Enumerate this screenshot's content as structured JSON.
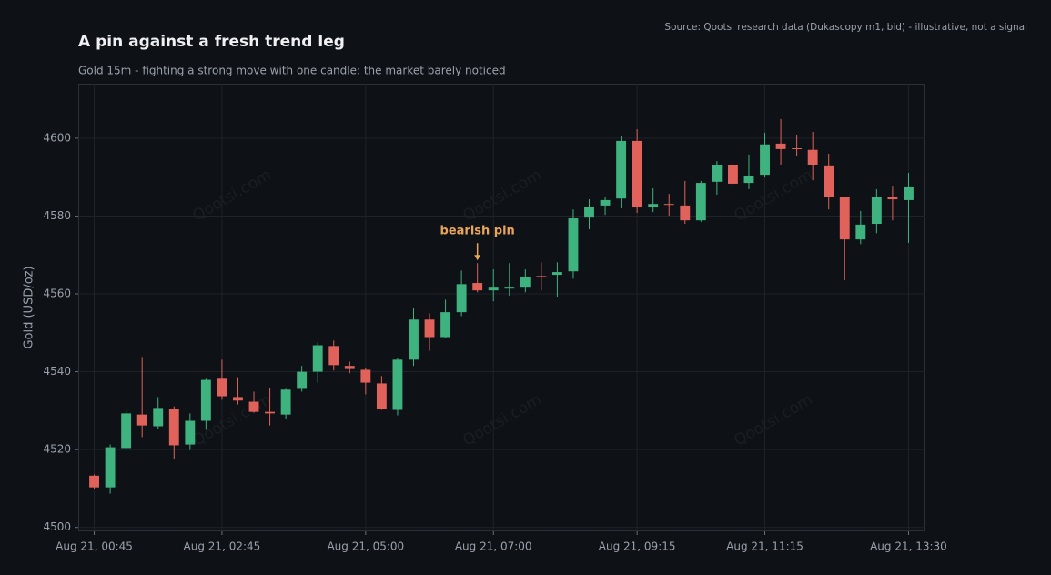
{
  "chart_data": {
    "type": "candlestick",
    "title": "A pin against a fresh trend leg",
    "subtitle": "Gold 15m - fighting a strong move with one candle: the market barely noticed",
    "source": "Source: Qootsi research data (Dukascopy m1, bid) - illustrative, not a signal",
    "y_label": "Gold (USD/oz)",
    "watermark": "Qootsi.com",
    "up_color": "#3fb37f",
    "down_color": "#e0625a",
    "annotation_color": "#e8a55a",
    "grid": true,
    "xlim": [
      -1,
      52
    ],
    "xticks": [
      {
        "value": 0,
        "label": "Aug 21, 00:45"
      },
      {
        "value": 8,
        "label": "Aug 21, 02:45"
      },
      {
        "value": 17,
        "label": "Aug 21, 05:00"
      },
      {
        "value": 25,
        "label": "Aug 21, 07:00"
      },
      {
        "value": 34,
        "label": "Aug 21, 09:15"
      },
      {
        "value": 42,
        "label": "Aug 21, 11:15"
      },
      {
        "value": 51,
        "label": "Aug 21, 13:30"
      }
    ],
    "ylim": [
      4499,
      4614
    ],
    "yticks": [
      4500,
      4520,
      4540,
      4560,
      4580,
      4600
    ],
    "open": [
      4513.3,
      4510.3,
      4520.4,
      4529.0,
      4526.0,
      4530.4,
      4521.3,
      4527.4,
      4538.2,
      4533.5,
      4532.3,
      4529.7,
      4529.0,
      4535.6,
      4540.0,
      4546.6,
      4541.5,
      4540.5,
      4537.0,
      4530.2,
      4543.1,
      4553.4,
      4548.9,
      4555.3,
      4562.8,
      4560.9,
      4561.4,
      4561.6,
      4564.6,
      4564.9,
      4565.8,
      4579.6,
      4582.7,
      4584.5,
      4599.3,
      4582.4,
      4583.1,
      4582.7,
      4578.9,
      4588.8,
      4593.2,
      4588.5,
      4590.6,
      4598.6,
      4597.4,
      4597.0,
      4593.0,
      4584.8,
      4574.0,
      4578.0,
      4585.0,
      4584.1
    ],
    "high": [
      4513.6,
      4521.3,
      4530.2,
      4543.8,
      4533.5,
      4531.1,
      4529.3,
      4538.2,
      4543.1,
      4538.6,
      4534.9,
      4535.8,
      4535.6,
      4541.5,
      4547.5,
      4548.0,
      4542.6,
      4541.0,
      4538.9,
      4543.6,
      4556.4,
      4555.0,
      4558.5,
      4566.0,
      4567.9,
      4566.3,
      4567.9,
      4566.3,
      4568.1,
      4568.1,
      4581.7,
      4584.3,
      4585.0,
      4600.7,
      4602.3,
      4587.1,
      4585.7,
      4589.0,
      4589.0,
      4594.1,
      4593.7,
      4595.8,
      4601.4,
      4604.9,
      4600.9,
      4601.6,
      4596.0,
      4584.8,
      4581.3,
      4586.9,
      4587.8,
      4591.1
    ],
    "low": [
      4509.8,
      4508.7,
      4520.1,
      4523.2,
      4525.3,
      4517.6,
      4519.9,
      4525.1,
      4532.8,
      4531.6,
      4529.5,
      4526.2,
      4527.9,
      4534.9,
      4537.2,
      4540.3,
      4539.6,
      4534.2,
      4530.2,
      4528.8,
      4541.5,
      4545.4,
      4548.7,
      4554.3,
      4560.4,
      4558.1,
      4559.5,
      4560.4,
      4560.9,
      4559.3,
      4563.9,
      4576.6,
      4580.3,
      4582.0,
      4580.8,
      4581.0,
      4580.1,
      4578.0,
      4578.5,
      4585.5,
      4587.6,
      4586.9,
      4589.9,
      4593.2,
      4595.5,
      4589.2,
      4581.7,
      4563.5,
      4572.8,
      4575.6,
      4578.9,
      4573.1
    ],
    "close": [
      4510.3,
      4520.6,
      4529.3,
      4526.2,
      4530.7,
      4521.1,
      4527.4,
      4537.9,
      4533.7,
      4532.6,
      4529.7,
      4529.3,
      4535.4,
      4540.0,
      4546.8,
      4541.7,
      4540.7,
      4537.2,
      4530.4,
      4543.1,
      4553.4,
      4548.9,
      4555.3,
      4562.5,
      4560.9,
      4561.6,
      4561.6,
      4564.4,
      4564.4,
      4565.6,
      4579.4,
      4582.4,
      4584.1,
      4599.3,
      4582.2,
      4583.1,
      4582.9,
      4578.9,
      4588.5,
      4593.2,
      4588.3,
      4590.4,
      4598.4,
      4597.2,
      4597.2,
      4593.2,
      4585.0,
      4574.0,
      4577.8,
      4585.0,
      4584.3,
      4587.6
    ],
    "annotations": [
      {
        "text": "bearish pin",
        "x": 24
      }
    ]
  }
}
